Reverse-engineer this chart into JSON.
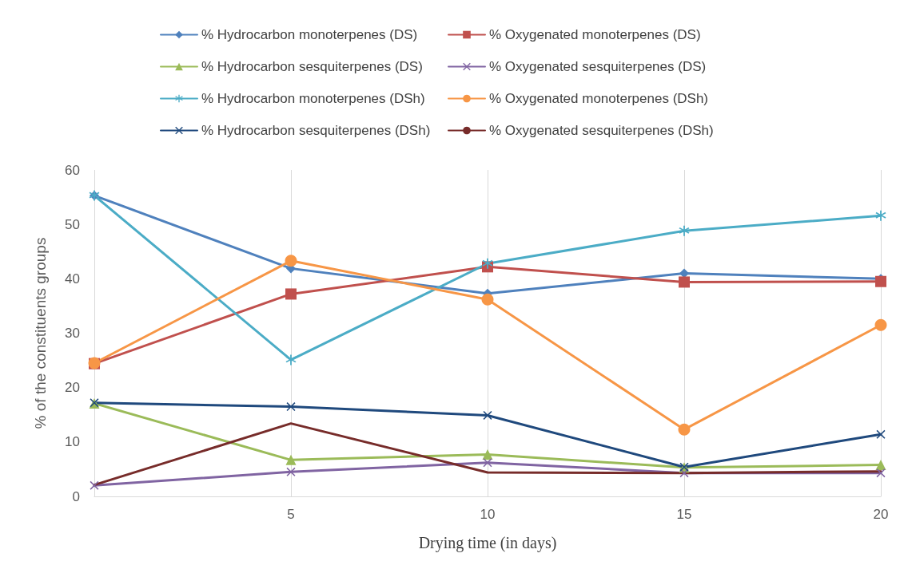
{
  "chart_data": {
    "type": "line",
    "xlabel": "Drying time (in days)",
    "ylabel": "% of the constituents groups",
    "x": [
      0,
      5,
      10,
      15,
      20
    ],
    "xlim": [
      0,
      20
    ],
    "xticks": [
      {
        "value": 0,
        "label": null
      },
      5,
      10,
      15,
      20
    ],
    "ylim": [
      0,
      60
    ],
    "yticks": [
      0,
      10,
      20,
      30,
      40,
      50,
      60
    ],
    "grid": "x",
    "legend": "top",
    "line_style": "solid",
    "series": [
      {
        "name": "% Hydrocarbon monoterpenes (DS)",
        "color": "#4f81bd",
        "marker": "diamond",
        "values": [
          55.3,
          41.9,
          37.3,
          41.0,
          40.0
        ]
      },
      {
        "name": "% Oxygenated monoterpenes (DS)",
        "color": "#c0504d",
        "marker": "square",
        "values": [
          24.4,
          37.2,
          42.2,
          39.4,
          39.5
        ]
      },
      {
        "name": "% Hydrocarbon sesquiterpenes (DS)",
        "color": "#9bbb59",
        "marker": "triangle",
        "values": [
          17.1,
          6.7,
          7.7,
          5.3,
          5.8
        ]
      },
      {
        "name": "% Oxygenated sesquiterpenes (DS)",
        "color": "#8064a2",
        "marker": "cross",
        "values": [
          2.0,
          4.5,
          6.2,
          4.3,
          4.3
        ]
      },
      {
        "name": "% Hydrocarbon monoterpenes (DSh)",
        "color": "#4bacc6",
        "marker": "star",
        "values": [
          55.3,
          25.1,
          42.8,
          48.8,
          51.6
        ]
      },
      {
        "name": "% Oxygenated monoterpenes (DSh)",
        "color": "#f79646",
        "marker": "circle",
        "values": [
          24.5,
          43.3,
          36.2,
          12.3,
          31.5
        ]
      },
      {
        "name": "% Hydrocarbon sesquiterpenes (DSh)",
        "color": "#1f497d",
        "marker": "cross",
        "values": [
          17.2,
          16.5,
          14.9,
          5.4,
          11.4
        ]
      },
      {
        "name": "% Oxygenated sesquiterpenes (DSh)",
        "color": "#772c2a",
        "marker": "none",
        "values": [
          2.1,
          13.4,
          4.4,
          4.3,
          4.6
        ]
      }
    ]
  }
}
